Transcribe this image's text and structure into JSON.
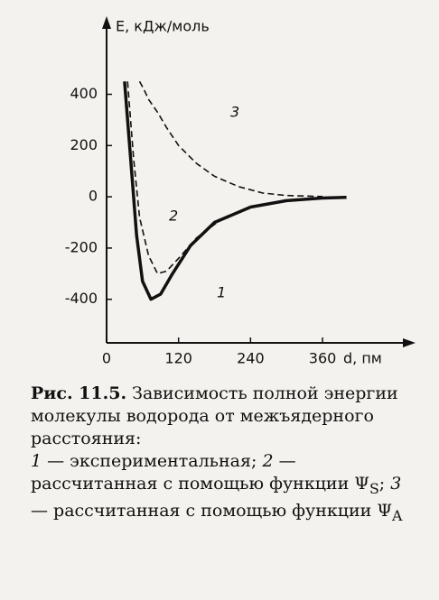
{
  "chart_data": {
    "type": "line",
    "x_label": "d, пм",
    "y_label": "E, кДж/моль",
    "xlim": [
      0,
      500
    ],
    "ylim": [
      -570,
      680
    ],
    "xticks": [
      0,
      120,
      240,
      360
    ],
    "yticks": [
      400,
      200,
      0,
      -200,
      -400
    ],
    "grid": false,
    "series": [
      {
        "name": "1",
        "color": "#111111",
        "dash": false,
        "x": [
          30,
          40,
          50,
          60,
          74,
          90,
          110,
          140,
          180,
          240,
          300,
          360,
          400
        ],
        "values": [
          450,
          150,
          -150,
          -330,
          -400,
          -380,
          -300,
          -190,
          -100,
          -40,
          -15,
          -5,
          -2
        ]
      },
      {
        "name": "2",
        "color": "#111111",
        "dash": true,
        "x": [
          35,
          45,
          55,
          70,
          85,
          100,
          120,
          150,
          190,
          240,
          300,
          360
        ],
        "values": [
          450,
          150,
          -80,
          -230,
          -300,
          -290,
          -240,
          -160,
          -90,
          -40,
          -15,
          -5
        ]
      },
      {
        "name": "3",
        "color": "#111111",
        "dash": true,
        "x": [
          55,
          62,
          70,
          85,
          100,
          120,
          150,
          180,
          220,
          260,
          300,
          360
        ],
        "values": [
          450,
          420,
          380,
          330,
          270,
          200,
          130,
          80,
          40,
          15,
          5,
          1
        ]
      }
    ]
  },
  "caption": {
    "label": "Рис. 11.5.",
    "title": "Зависимость полной энергии молекулы водорода от межъядерного расстояния:",
    "items": [
      {
        "num": "1",
        "text": "— экспериментальная;"
      },
      {
        "num": "2",
        "text": "— рассчитанная с помощью функции Ψ",
        "sub": "S",
        "end": ";"
      },
      {
        "num": "3",
        "text": "— рассчитанная с помощью функции Ψ",
        "sub": "A"
      }
    ]
  }
}
